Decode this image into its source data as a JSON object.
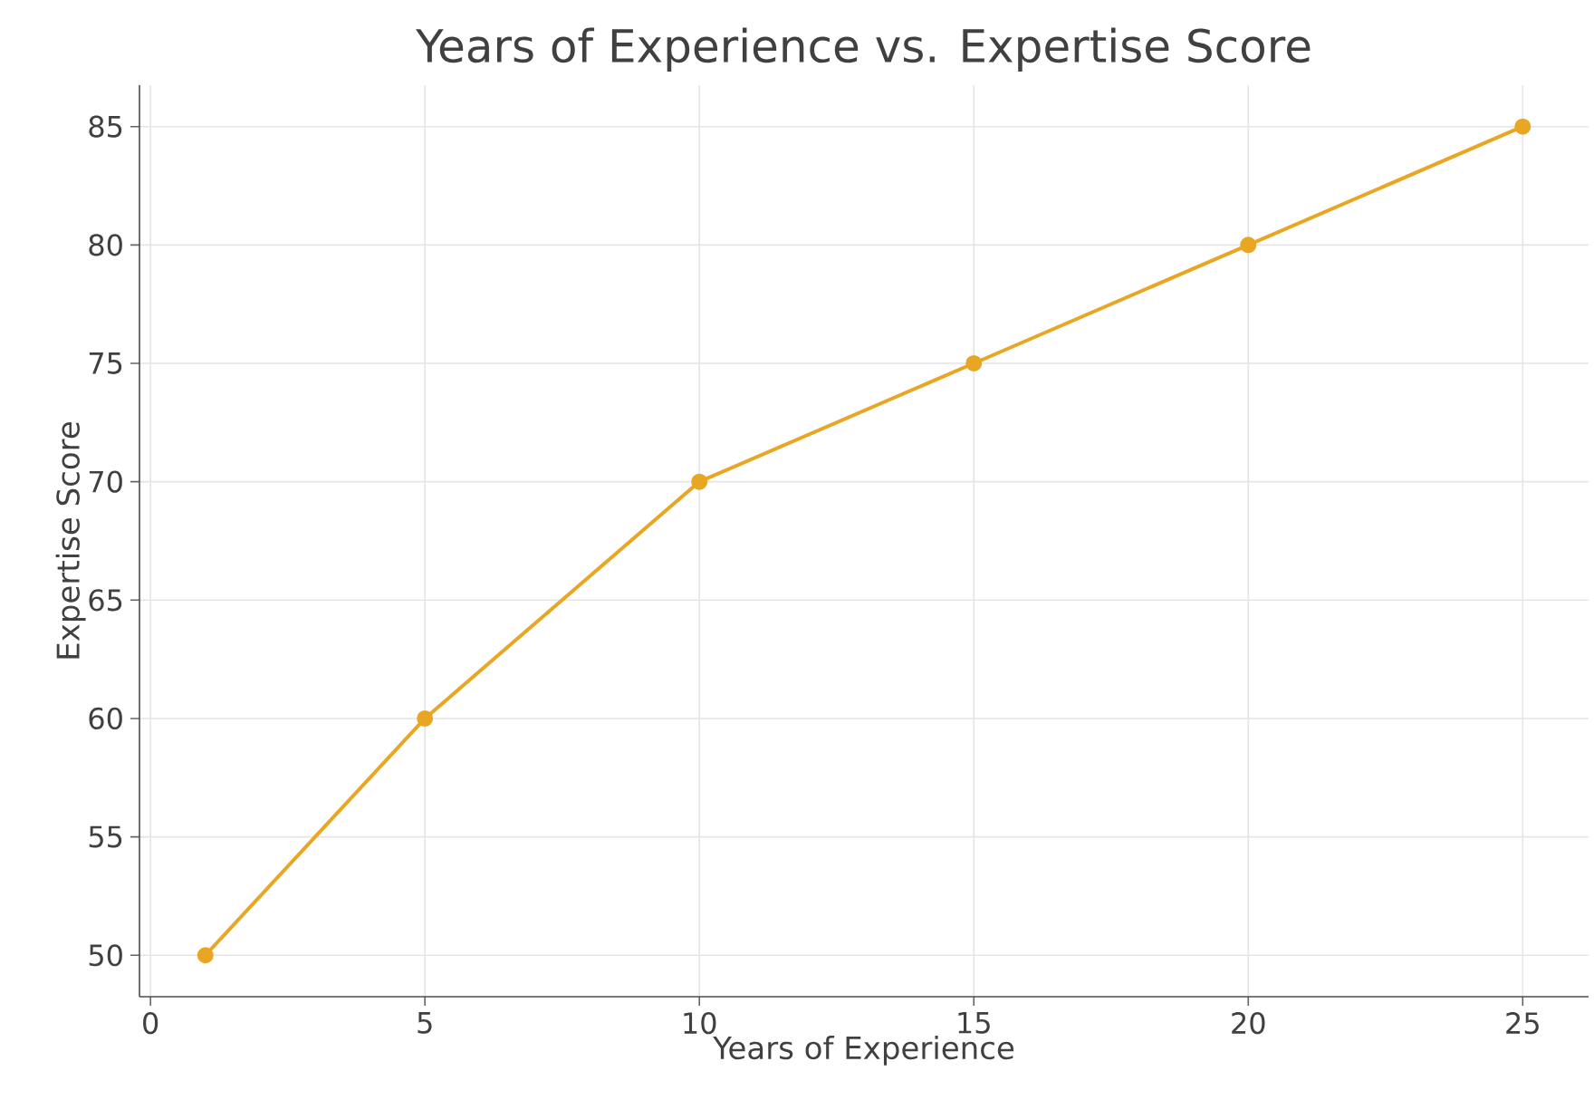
{
  "chart_data": {
    "type": "line",
    "title": "Years of Experience vs. Expertise Score",
    "xlabel": "Years of Experience",
    "ylabel": "Expertise Score",
    "x": [
      1,
      5,
      10,
      15,
      20,
      25
    ],
    "series": [
      {
        "color": "#e8a623",
        "values": [
          50,
          60,
          70,
          75,
          80,
          85
        ]
      }
    ],
    "xlim": [
      -0.2,
      26.2
    ],
    "ylim": [
      48.25,
      86.75
    ],
    "xticks": [
      0,
      5,
      10,
      15,
      20,
      25
    ],
    "yticks": [
      50,
      55,
      60,
      65,
      70,
      75,
      80,
      85
    ],
    "grid": true,
    "marker": "circle",
    "line_style": "solid"
  }
}
